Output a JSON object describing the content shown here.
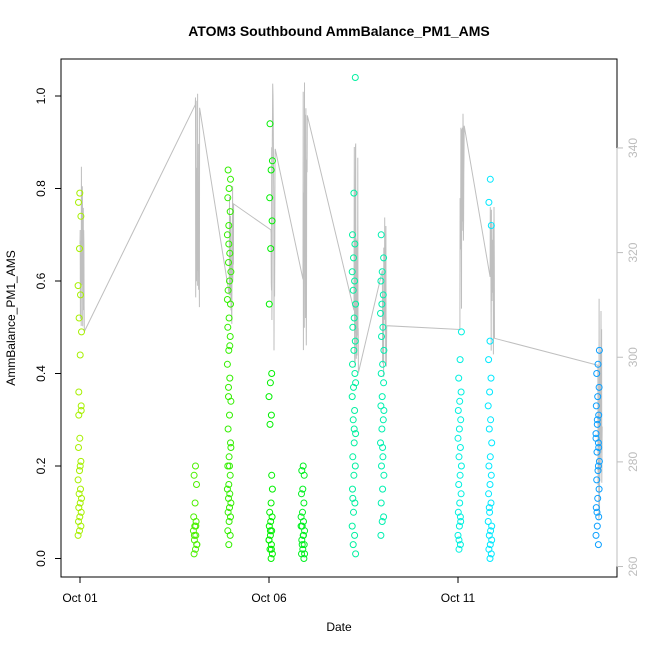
{
  "chart_data": {
    "type": "scatter",
    "title": "ATOM3 Southbound AmmBalance_PM1_AMS",
    "xlabel": "Date",
    "ylabel": "AmmBalance_PM1_AMS",
    "x_ticks": [
      "Oct 01",
      "Oct 06",
      "Oct 11"
    ],
    "x_range_days": [
      0,
      14
    ],
    "y_ticks": [
      0.0,
      0.2,
      0.4,
      0.6,
      0.8,
      1.0
    ],
    "ylim": [
      -0.04,
      1.08
    ],
    "y2_ticks": [
      260,
      280,
      300,
      320,
      340
    ],
    "y2lim": [
      258,
      357
    ],
    "secondary_series_color": "#bfbfbf",
    "grid": false,
    "point_style": "open-circle",
    "color_gradient": [
      "#a0f000",
      "#00ff00",
      "#00ffc0",
      "#00ffff",
      "#00a0ff"
    ],
    "series": [
      {
        "x_day": 0.0,
        "y_values": [
          0.05,
          0.06,
          0.07,
          0.08,
          0.09,
          0.1,
          0.11,
          0.12,
          0.13,
          0.14,
          0.15,
          0.17,
          0.19,
          0.21,
          0.24,
          0.26,
          0.32,
          0.36,
          0.44,
          0.49,
          0.52,
          0.57,
          0.59,
          0.67,
          0.74,
          0.77,
          0.79,
          0.33,
          0.31,
          0.2
        ],
        "color": "#a6f000"
      },
      {
        "x_day": 3.05,
        "y_values": [
          0.01,
          0.02,
          0.03,
          0.04,
          0.05,
          0.06,
          0.07,
          0.08,
          0.09,
          0.12,
          0.16,
          0.18,
          0.2,
          0.03,
          0.05,
          0.07
        ],
        "color": "#4cf000"
      },
      {
        "x_day": 3.95,
        "y_values": [
          0.03,
          0.05,
          0.06,
          0.08,
          0.09,
          0.1,
          0.11,
          0.12,
          0.13,
          0.14,
          0.15,
          0.16,
          0.18,
          0.2,
          0.22,
          0.25,
          0.28,
          0.31,
          0.34,
          0.37,
          0.39,
          0.42,
          0.45,
          0.48,
          0.5,
          0.52,
          0.55,
          0.58,
          0.6,
          0.62,
          0.64,
          0.66,
          0.7,
          0.72,
          0.75,
          0.78,
          0.8,
          0.82,
          0.84,
          0.2,
          0.24,
          0.35,
          0.46,
          0.56,
          0.68
        ],
        "color": "#33ef00"
      },
      {
        "x_day": 5.05,
        "y_values": [
          0.0,
          0.01,
          0.02,
          0.03,
          0.04,
          0.05,
          0.06,
          0.07,
          0.08,
          0.09,
          0.1,
          0.12,
          0.15,
          0.29,
          0.31,
          0.35,
          0.38,
          0.4,
          0.55,
          0.67,
          0.73,
          0.78,
          0.84,
          0.86,
          0.94,
          0.02,
          0.04,
          0.06,
          0.18
        ],
        "color": "#00f000"
      },
      {
        "x_day": 5.9,
        "y_values": [
          0.0,
          0.01,
          0.02,
          0.03,
          0.04,
          0.05,
          0.06,
          0.07,
          0.08,
          0.09,
          0.1,
          0.12,
          0.14,
          0.15,
          0.18,
          0.19,
          0.2,
          0.01,
          0.03,
          0.05,
          0.07
        ],
        "color": "#00f020"
      },
      {
        "x_day": 7.25,
        "y_values": [
          0.01,
          0.03,
          0.05,
          0.07,
          0.1,
          0.12,
          0.15,
          0.18,
          0.2,
          0.22,
          0.25,
          0.27,
          0.3,
          0.32,
          0.35,
          0.37,
          0.4,
          0.42,
          0.45,
          0.47,
          0.5,
          0.52,
          0.55,
          0.58,
          0.6,
          0.62,
          0.65,
          0.68,
          0.7,
          0.79,
          1.04,
          0.13,
          0.28,
          0.38
        ],
        "color": "#00f0a0"
      },
      {
        "x_day": 8.0,
        "y_values": [
          0.05,
          0.08,
          0.09,
          0.12,
          0.15,
          0.18,
          0.2,
          0.22,
          0.25,
          0.28,
          0.3,
          0.33,
          0.35,
          0.38,
          0.4,
          0.42,
          0.45,
          0.48,
          0.5,
          0.53,
          0.55,
          0.57,
          0.6,
          0.62,
          0.65,
          0.7,
          0.24,
          0.32
        ],
        "color": "#00f0b0"
      },
      {
        "x_day": 10.05,
        "y_values": [
          0.02,
          0.03,
          0.05,
          0.07,
          0.08,
          0.1,
          0.12,
          0.14,
          0.16,
          0.18,
          0.2,
          0.22,
          0.24,
          0.26,
          0.28,
          0.3,
          0.32,
          0.34,
          0.36,
          0.39,
          0.43,
          0.49,
          0.04,
          0.09
        ],
        "color": "#00f0e0"
      },
      {
        "x_day": 10.85,
        "y_values": [
          0.0,
          0.01,
          0.02,
          0.03,
          0.04,
          0.05,
          0.06,
          0.08,
          0.1,
          0.12,
          0.14,
          0.16,
          0.18,
          0.2,
          0.22,
          0.25,
          0.28,
          0.3,
          0.33,
          0.36,
          0.39,
          0.43,
          0.47,
          0.72,
          0.77,
          0.82,
          0.07,
          0.11
        ],
        "color": "#00e8ff"
      },
      {
        "x_day": 13.7,
        "y_values": [
          0.03,
          0.05,
          0.07,
          0.09,
          0.11,
          0.13,
          0.15,
          0.17,
          0.19,
          0.21,
          0.23,
          0.25,
          0.27,
          0.29,
          0.31,
          0.33,
          0.35,
          0.37,
          0.4,
          0.42,
          0.45,
          0.1,
          0.2,
          0.26,
          0.3,
          0.24
        ],
        "color": "#0ca0ff"
      }
    ]
  }
}
